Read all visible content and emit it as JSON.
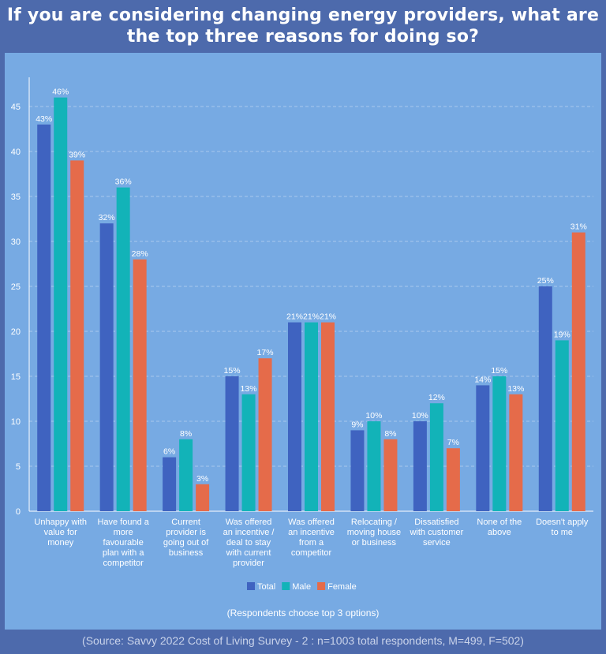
{
  "title": "If you are considering changing energy providers, what are the top three reasons for doing so?",
  "note": "(Respondents choose top 3 options)",
  "source": "(Source: Savvy 2022 Cost of Living Survey - 2 : n=1003 total respondents, M=499, F=502)",
  "chart_data": {
    "type": "bar",
    "categories": [
      [
        "Unhappy with",
        "value for",
        "money"
      ],
      [
        "Have found a",
        "more",
        "favourable",
        "plan with a",
        "competitor"
      ],
      [
        "Current",
        "provider is",
        "going out of",
        "business"
      ],
      [
        "Was offered",
        "an incentive /",
        "deal to stay",
        "with current",
        "provider"
      ],
      [
        "Was offered",
        "an incentive",
        "from a",
        "competitor"
      ],
      [
        "Relocating /",
        "moving house",
        "or business"
      ],
      [
        "Dissatisfied",
        "with customer",
        "service"
      ],
      [
        "None of the",
        "above"
      ],
      [
        "Doesn't apply",
        "to me"
      ]
    ],
    "series": [
      {
        "name": "Total",
        "color": "#3f63c0",
        "values": [
          43,
          32,
          6,
          15,
          21,
          9,
          10,
          14,
          25
        ]
      },
      {
        "name": "Male",
        "color": "#12b3b8",
        "values": [
          46,
          36,
          8,
          13,
          21,
          10,
          12,
          15,
          19
        ]
      },
      {
        "name": "Female",
        "color": "#e56b4a",
        "values": [
          39,
          28,
          3,
          17,
          21,
          8,
          7,
          13,
          31
        ]
      }
    ],
    "data_label_suffix": "%",
    "yticks": [
      0,
      5,
      10,
      15,
      20,
      25,
      30,
      35,
      40,
      45
    ],
    "ylim": [
      0,
      49
    ],
    "grid": true,
    "legend": "bottom"
  }
}
